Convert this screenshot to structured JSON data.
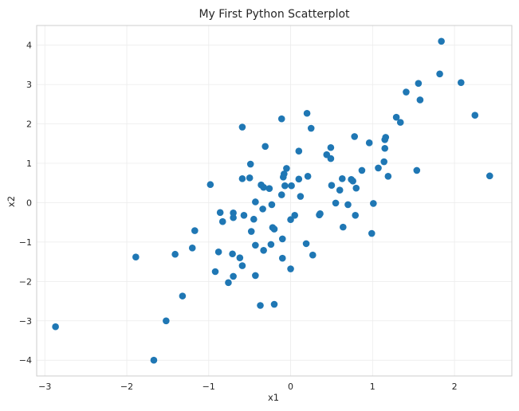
{
  "chart_data": {
    "type": "scatter",
    "title": "My First Python Scatterplot",
    "xlabel": "x1",
    "ylabel": "x2",
    "xlim": [
      -3.1,
      2.7
    ],
    "ylim": [
      -4.4,
      4.5
    ],
    "xticks": [
      -3,
      -2,
      -1,
      0,
      1,
      2
    ],
    "yticks": [
      -4,
      -3,
      -2,
      -1,
      0,
      1,
      2,
      3,
      4
    ],
    "grid": true,
    "color": "#1f77b4",
    "points": [
      {
        "x": -2.87,
        "y": -3.15
      },
      {
        "x": -1.89,
        "y": -1.38
      },
      {
        "x": -1.67,
        "y": -4.0
      },
      {
        "x": -1.52,
        "y": -3.0
      },
      {
        "x": -1.41,
        "y": -1.31
      },
      {
        "x": -1.32,
        "y": -2.37
      },
      {
        "x": -1.2,
        "y": -1.15
      },
      {
        "x": -1.17,
        "y": -0.71
      },
      {
        "x": -0.98,
        "y": 0.46
      },
      {
        "x": -0.92,
        "y": -1.75
      },
      {
        "x": -0.88,
        "y": -1.25
      },
      {
        "x": -0.86,
        "y": -0.25
      },
      {
        "x": -0.83,
        "y": -0.48
      },
      {
        "x": -0.76,
        "y": -2.03
      },
      {
        "x": -0.71,
        "y": -1.3
      },
      {
        "x": -0.7,
        "y": -0.38
      },
      {
        "x": -0.7,
        "y": -0.26
      },
      {
        "x": -0.7,
        "y": -1.87
      },
      {
        "x": -0.62,
        "y": -1.4
      },
      {
        "x": -0.59,
        "y": -1.6
      },
      {
        "x": -0.59,
        "y": 1.92
      },
      {
        "x": -0.59,
        "y": 0.61
      },
      {
        "x": -0.57,
        "y": -0.32
      },
      {
        "x": -0.5,
        "y": 0.63
      },
      {
        "x": -0.49,
        "y": 0.98
      },
      {
        "x": -0.48,
        "y": -0.73
      },
      {
        "x": -0.45,
        "y": -0.42
      },
      {
        "x": -0.43,
        "y": -1.08
      },
      {
        "x": -0.43,
        "y": -1.85
      },
      {
        "x": -0.43,
        "y": 0.02
      },
      {
        "x": -0.37,
        "y": -2.61
      },
      {
        "x": -0.36,
        "y": 0.45
      },
      {
        "x": -0.34,
        "y": -0.16
      },
      {
        "x": -0.33,
        "y": 0.39
      },
      {
        "x": -0.33,
        "y": -1.21
      },
      {
        "x": -0.31,
        "y": 1.43
      },
      {
        "x": -0.26,
        "y": 0.36
      },
      {
        "x": -0.24,
        "y": -1.06
      },
      {
        "x": -0.23,
        "y": -0.05
      },
      {
        "x": -0.22,
        "y": -0.63
      },
      {
        "x": -0.2,
        "y": -0.67
      },
      {
        "x": -0.2,
        "y": -2.58
      },
      {
        "x": -0.11,
        "y": 0.2
      },
      {
        "x": -0.11,
        "y": 2.13
      },
      {
        "x": -0.1,
        "y": -1.41
      },
      {
        "x": -0.1,
        "y": -0.92
      },
      {
        "x": -0.09,
        "y": 0.65
      },
      {
        "x": -0.08,
        "y": 0.73
      },
      {
        "x": -0.07,
        "y": 0.43
      },
      {
        "x": -0.05,
        "y": 0.87
      },
      {
        "x": 0.0,
        "y": -1.68
      },
      {
        "x": 0.0,
        "y": -0.43
      },
      {
        "x": 0.01,
        "y": 0.43
      },
      {
        "x": 0.05,
        "y": -0.32
      },
      {
        "x": 0.1,
        "y": 0.6
      },
      {
        "x": 0.1,
        "y": 1.31
      },
      {
        "x": 0.12,
        "y": 0.16
      },
      {
        "x": 0.19,
        "y": -1.04
      },
      {
        "x": 0.2,
        "y": 2.27
      },
      {
        "x": 0.21,
        "y": 0.67
      },
      {
        "x": 0.25,
        "y": 1.89
      },
      {
        "x": 0.27,
        "y": -1.33
      },
      {
        "x": 0.35,
        "y": -0.31
      },
      {
        "x": 0.36,
        "y": -0.28
      },
      {
        "x": 0.44,
        "y": 1.22
      },
      {
        "x": 0.49,
        "y": 1.4
      },
      {
        "x": 0.49,
        "y": 1.12
      },
      {
        "x": 0.5,
        "y": 0.44
      },
      {
        "x": 0.55,
        "y": -0.01
      },
      {
        "x": 0.6,
        "y": 0.32
      },
      {
        "x": 0.63,
        "y": 0.61
      },
      {
        "x": 0.64,
        "y": -0.62
      },
      {
        "x": 0.7,
        "y": -0.05
      },
      {
        "x": 0.74,
        "y": 0.59
      },
      {
        "x": 0.76,
        "y": 0.55
      },
      {
        "x": 0.78,
        "y": 1.68
      },
      {
        "x": 0.79,
        "y": -0.32
      },
      {
        "x": 0.8,
        "y": 0.37
      },
      {
        "x": 0.87,
        "y": 0.82
      },
      {
        "x": 0.96,
        "y": 1.52
      },
      {
        "x": 0.99,
        "y": -0.78
      },
      {
        "x": 1.01,
        "y": -0.02
      },
      {
        "x": 1.07,
        "y": 0.88
      },
      {
        "x": 1.14,
        "y": 1.04
      },
      {
        "x": 1.15,
        "y": 1.38
      },
      {
        "x": 1.15,
        "y": 1.6
      },
      {
        "x": 1.16,
        "y": 1.66
      },
      {
        "x": 1.19,
        "y": 0.67
      },
      {
        "x": 1.29,
        "y": 2.17
      },
      {
        "x": 1.34,
        "y": 2.04
      },
      {
        "x": 1.41,
        "y": 2.81
      },
      {
        "x": 1.54,
        "y": 0.82
      },
      {
        "x": 1.56,
        "y": 3.03
      },
      {
        "x": 1.58,
        "y": 2.61
      },
      {
        "x": 1.82,
        "y": 3.27
      },
      {
        "x": 1.84,
        "y": 4.1
      },
      {
        "x": 2.08,
        "y": 3.05
      },
      {
        "x": 2.25,
        "y": 2.22
      },
      {
        "x": 2.43,
        "y": 0.68
      }
    ]
  }
}
